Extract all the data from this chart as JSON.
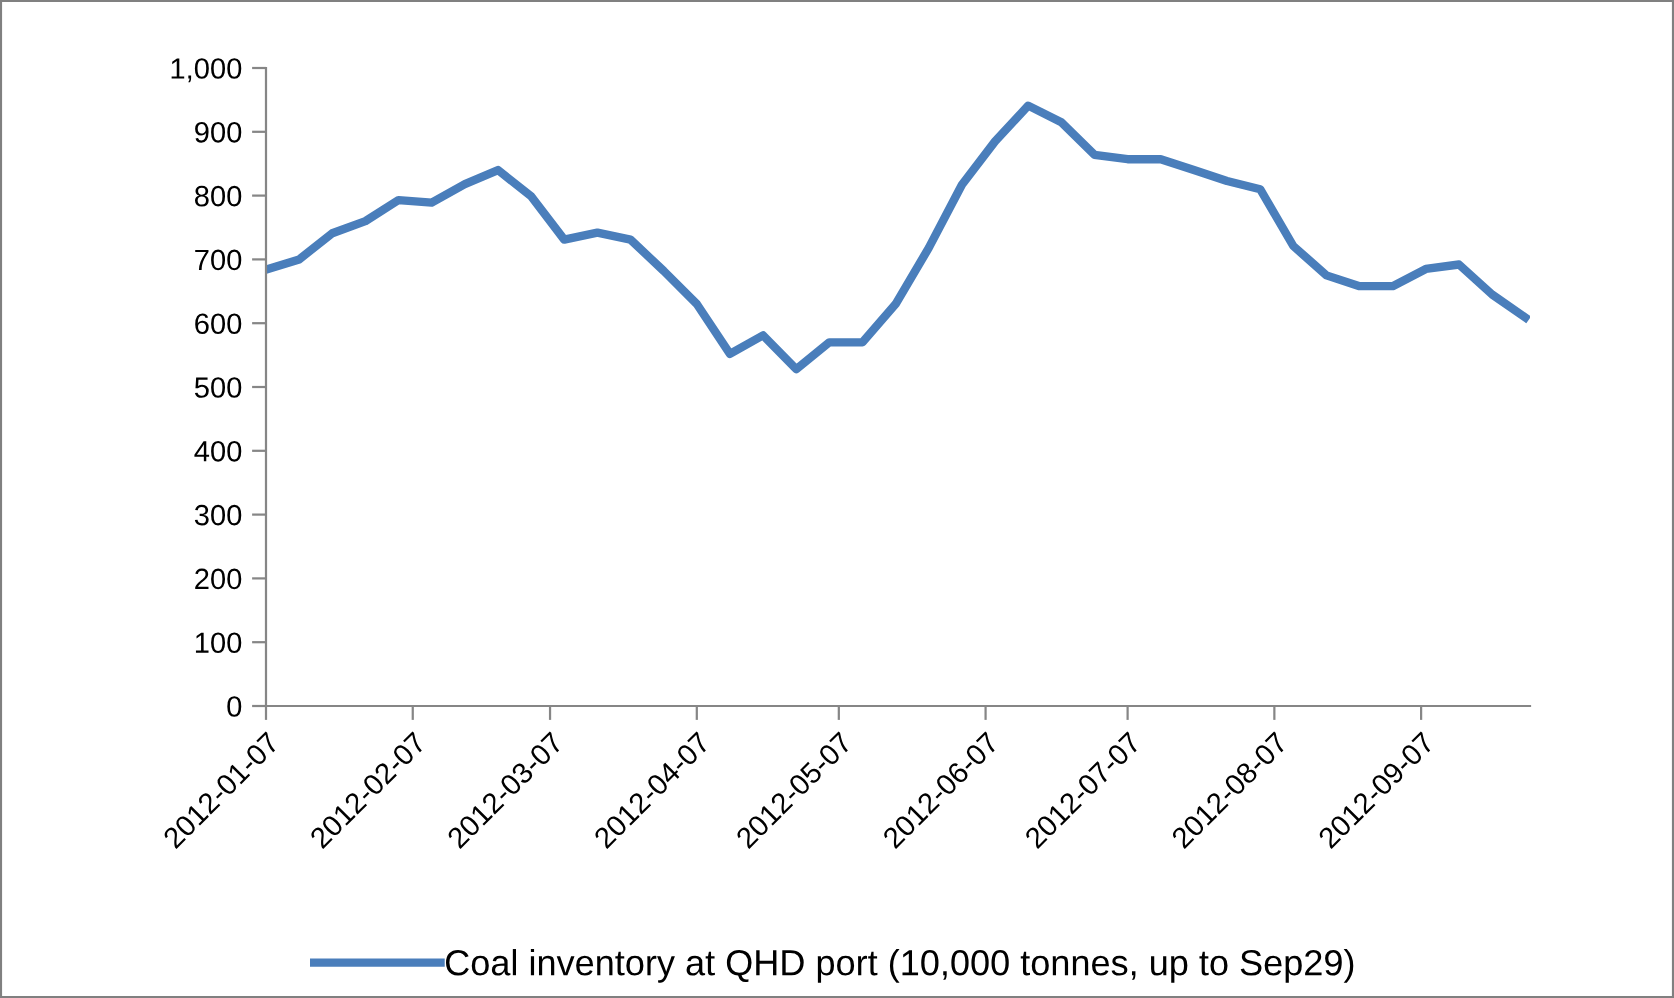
{
  "chart_data": {
    "type": "line",
    "x": [
      "2012-01-07",
      "2012-01-14",
      "2012-01-21",
      "2012-01-28",
      "2012-02-04",
      "2012-02-11",
      "2012-02-18",
      "2012-02-25",
      "2012-03-03",
      "2012-03-10",
      "2012-03-17",
      "2012-03-24",
      "2012-03-31",
      "2012-04-07",
      "2012-04-14",
      "2012-04-21",
      "2012-04-28",
      "2012-05-05",
      "2012-05-12",
      "2012-05-19",
      "2012-05-26",
      "2012-06-02",
      "2012-06-09",
      "2012-06-16",
      "2012-06-23",
      "2012-06-30",
      "2012-07-07",
      "2012-07-14",
      "2012-07-21",
      "2012-07-28",
      "2012-08-04",
      "2012-08-11",
      "2012-08-18",
      "2012-08-25",
      "2012-09-01",
      "2012-09-08",
      "2012-09-15",
      "2012-09-22",
      "2012-09-29"
    ],
    "series": [
      {
        "name": "Coal inventory at QHD port (10,000 tonnes, up to Sep29)",
        "color": "#4a7ebb",
        "values": [
          684,
          700,
          741,
          760,
          793,
          789,
          818,
          840,
          799,
          731,
          742,
          731,
          682,
          630,
          552,
          581,
          528,
          570,
          570,
          630,
          718,
          817,
          885,
          941,
          915,
          864,
          857,
          857,
          840,
          823,
          810,
          721,
          675,
          658,
          658,
          685,
          692,
          645,
          609
        ]
      }
    ],
    "xlim": [
      "2012-01-07",
      "2012-09-30"
    ],
    "xticks": [
      "2012-01-07",
      "2012-02-07",
      "2012-03-07",
      "2012-04-07",
      "2012-05-07",
      "2012-06-07",
      "2012-07-07",
      "2012-08-07",
      "2012-09-07"
    ],
    "ylim": [
      0,
      1000
    ],
    "yticks": [
      0,
      100,
      200,
      300,
      400,
      500,
      600,
      700,
      800,
      900,
      {
        "value": 1000,
        "label": "1,000"
      }
    ],
    "grid": false,
    "legend": "bottom",
    "marker": "none",
    "line_style": "solid"
  }
}
